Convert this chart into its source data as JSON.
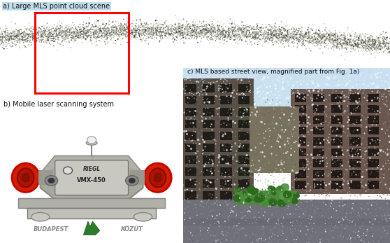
{
  "background_color": "#ffffff",
  "panel_a_label": "a) Large MLS point cloud scene",
  "panel_b_label": "b) Mobile laser scanning system",
  "panel_c_label": "c) MLS based street view, magnified part from Fig. 1a)",
  "panel_a_bg": "#b8d8e8",
  "panel_b_bg": "#ffffff",
  "panel_c_bg": "#c8dce8",
  "red_rect_color": "#ff0000",
  "logo_green": "#2d7a2d",
  "logo_text": "BUDAPEST",
  "logo_text2": "KÖZÚT",
  "label_fontsize": 7.0,
  "label_color": "#111111",
  "figsize": [
    5.58,
    3.47
  ],
  "dpi": 100
}
